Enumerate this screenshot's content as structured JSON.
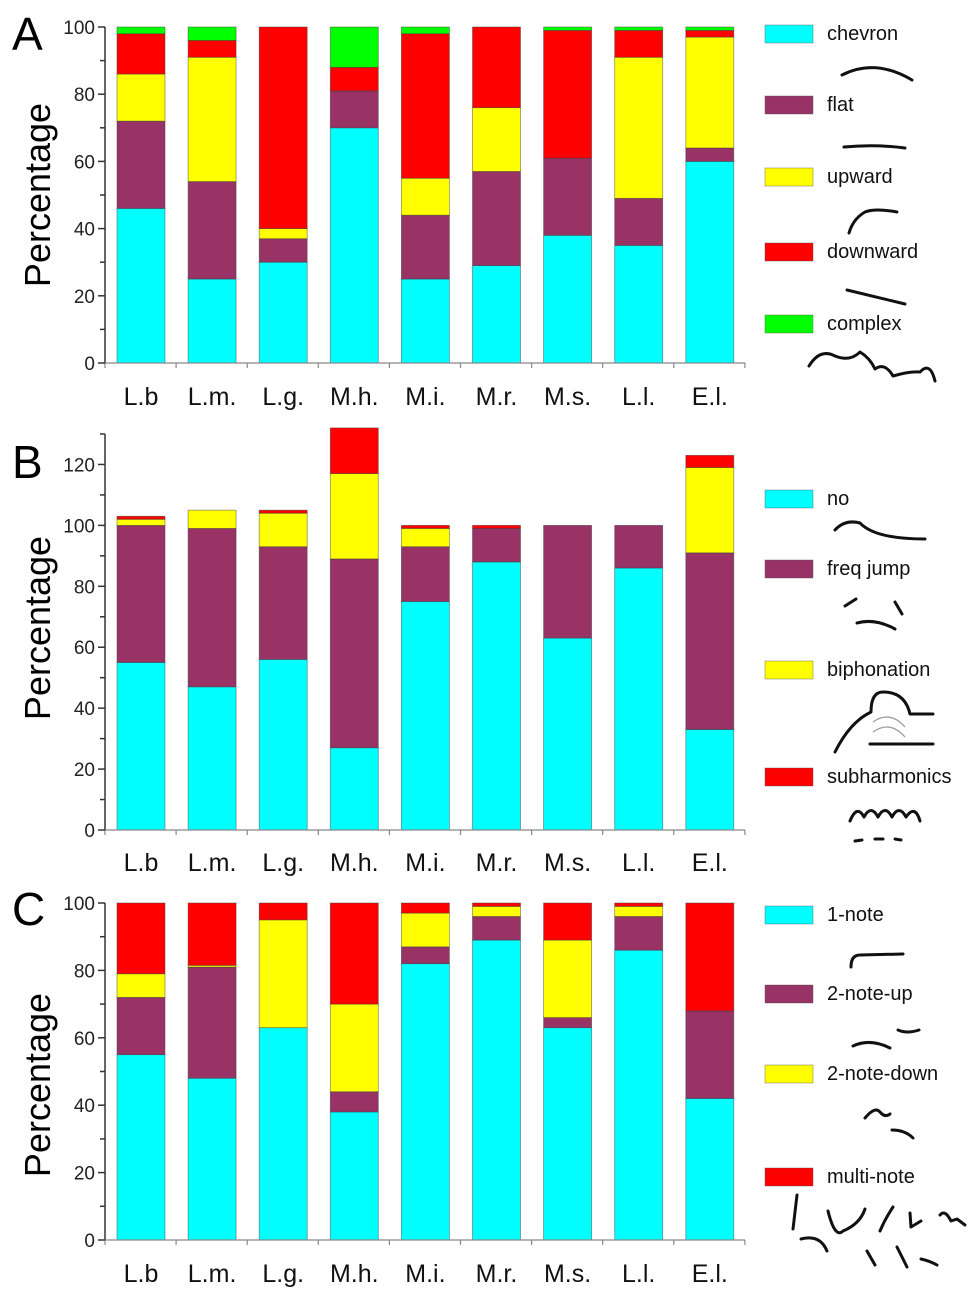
{
  "chart_data": [
    {
      "type": "bar",
      "stacked": true,
      "panel_letter": "A",
      "title": "",
      "xlabel": "",
      "ylabel": "Percentage",
      "ylim": [
        0,
        100
      ],
      "yticks": [
        0,
        20,
        40,
        60,
        80,
        100
      ],
      "categories": [
        "L.b",
        "L.m.",
        "L.g.",
        "M.h.",
        "M.i.",
        "M.r.",
        "M.s.",
        "L.l.",
        "E.l."
      ],
      "legend_position": "right",
      "series": [
        {
          "name": "chevron",
          "color": "#00FFFF",
          "values": [
            46,
            25,
            30,
            70,
            25,
            29,
            38,
            35,
            60
          ]
        },
        {
          "name": "flat",
          "color": "#993366",
          "values": [
            26,
            29,
            7,
            11,
            19,
            28,
            23,
            14,
            4
          ]
        },
        {
          "name": "upward",
          "color": "#FFFF00",
          "values": [
            14,
            37,
            3,
            0,
            11,
            19,
            0,
            42,
            33
          ]
        },
        {
          "name": "downward",
          "color": "#FF0000",
          "values": [
            12,
            5,
            60,
            7,
            43,
            24,
            38,
            8,
            2
          ]
        },
        {
          "name": "complex",
          "color": "#00FF00",
          "values": [
            2,
            4,
            0,
            12,
            2,
            0,
            1,
            1,
            1
          ]
        }
      ],
      "legend_sketches": [
        "chevron-contour-icon",
        "flat-contour-icon",
        "upward-contour-icon",
        "downward-contour-icon",
        "complex-contour-icon"
      ]
    },
    {
      "type": "bar",
      "stacked": true,
      "panel_letter": "B",
      "title": "",
      "xlabel": "",
      "ylabel": "Percentage",
      "ylim": [
        0,
        130
      ],
      "yticks": [
        0,
        20,
        40,
        60,
        80,
        100,
        120
      ],
      "categories": [
        "L.b",
        "L.m.",
        "L.g.",
        "M.h.",
        "M.i.",
        "M.r.",
        "M.s.",
        "L.l.",
        "E.l."
      ],
      "legend_position": "right",
      "series": [
        {
          "name": "no",
          "color": "#00FFFF",
          "values": [
            55,
            47,
            56,
            27,
            75,
            88,
            63,
            86,
            33
          ]
        },
        {
          "name": "freq jump",
          "color": "#993366",
          "values": [
            45,
            52,
            37,
            62,
            18,
            11,
            37,
            14,
            58
          ]
        },
        {
          "name": "biphonation",
          "color": "#FFFF00",
          "values": [
            2,
            6,
            11,
            28,
            6,
            0,
            0,
            0,
            28
          ]
        },
        {
          "name": "subharmonics",
          "color": "#FF0000",
          "values": [
            1,
            0,
            1,
            15,
            1,
            1,
            0,
            0,
            4
          ]
        }
      ],
      "legend_sketches": [
        "no-nonlinearity-contour-icon",
        "freq-jump-contour-icon",
        "biphonation-contour-icon",
        "subharmonics-contour-icon"
      ]
    },
    {
      "type": "bar",
      "stacked": true,
      "panel_letter": "C",
      "title": "",
      "xlabel": "",
      "ylabel": "Percentage",
      "ylim": [
        0,
        100
      ],
      "yticks": [
        0,
        20,
        40,
        60,
        80,
        100
      ],
      "categories": [
        "L.b",
        "L.m.",
        "L.g.",
        "M.h.",
        "M.i.",
        "M.r.",
        "M.s.",
        "L.l.",
        "E.l."
      ],
      "legend_position": "right",
      "series": [
        {
          "name": "1-note",
          "color": "#00FFFF",
          "values": [
            55,
            48,
            63,
            38,
            82,
            89,
            63,
            86,
            42
          ]
        },
        {
          "name": "2-note-up",
          "color": "#993366",
          "values": [
            17,
            33,
            0,
            6,
            5,
            7,
            3,
            10,
            26
          ]
        },
        {
          "name": "2-note-down",
          "color": "#FFFF00",
          "values": [
            7,
            0.5,
            32,
            26,
            10,
            3,
            23,
            3,
            0
          ]
        },
        {
          "name": "multi-note",
          "color": "#FF0000",
          "values": [
            21,
            18.5,
            5,
            30,
            3,
            1,
            11,
            1,
            32
          ]
        }
      ],
      "legend_sketches": [
        "one-note-contour-icon",
        "two-note-up-contour-icon",
        "two-note-down-contour-icon",
        "multi-note-contour-icon"
      ]
    }
  ]
}
